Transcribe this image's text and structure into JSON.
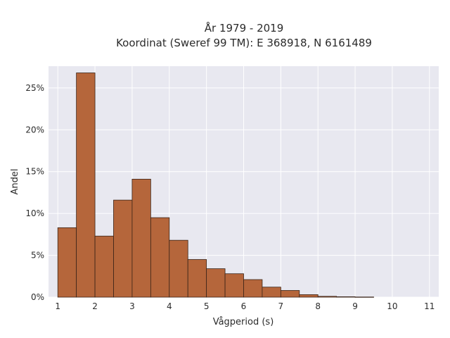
{
  "chart_data": {
    "type": "bar",
    "title_lines": [
      "År 1979 - 2019",
      "Koordinat (Sweref 99 TM): E 368918, N 6161489"
    ],
    "xlabel": "Vågperiod (s)",
    "ylabel": "Andel",
    "bin_width": 0.5,
    "bin_starts": [
      1.0,
      1.5,
      2.0,
      2.5,
      3.0,
      3.5,
      4.0,
      4.5,
      5.0,
      5.5,
      6.0,
      6.5,
      7.0,
      7.5,
      8.0,
      8.5,
      9.0
    ],
    "values": [
      8.3,
      26.8,
      7.3,
      11.6,
      14.1,
      9.5,
      6.8,
      4.5,
      3.4,
      2.8,
      2.1,
      1.2,
      0.8,
      0.3,
      0.1,
      0.05,
      0.02
    ],
    "xlim": [
      0.75,
      11.25
    ],
    "ylim": [
      0,
      27.6
    ],
    "x_ticks": [
      1,
      2,
      3,
      4,
      5,
      6,
      7,
      8,
      9,
      10,
      11
    ],
    "x_tick_labels": [
      "1",
      "2",
      "3",
      "4",
      "5",
      "6",
      "7",
      "8",
      "9",
      "10",
      "11"
    ],
    "y_ticks": [
      0,
      5,
      10,
      15,
      20,
      25
    ],
    "y_tick_labels": [
      "0%",
      "5%",
      "10%",
      "15%",
      "20%",
      "25%"
    ],
    "grid": true,
    "bar_color": "#b5663b",
    "bar_edge_color": "#3a2418",
    "plot_background": "#e8e8f0",
    "grid_color": "#ffffff"
  }
}
